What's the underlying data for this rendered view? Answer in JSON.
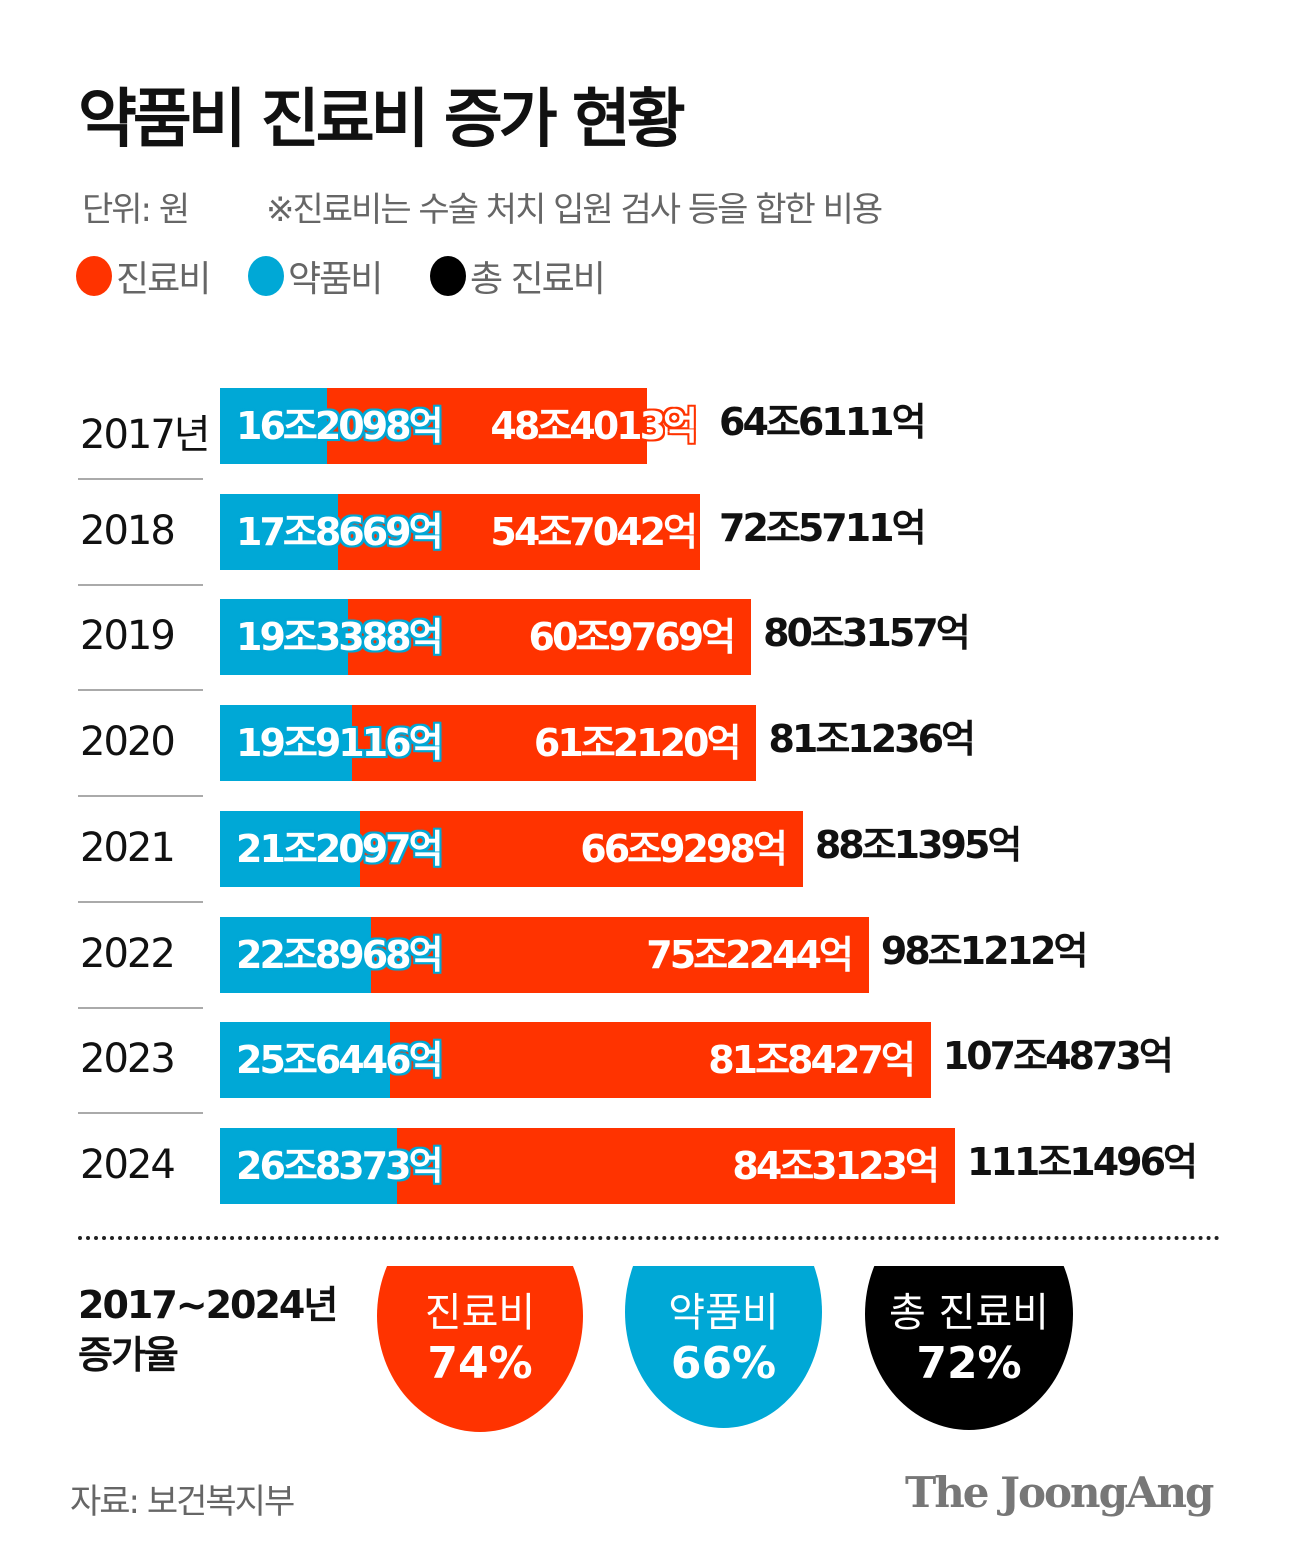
{
  "title": "약품비 진료비 증가 현황",
  "unit": "단위: 원",
  "note": "※진료비는 수술 처치 입원 검사 등을 합한 비용",
  "legend": [
    {
      "label": "진료비",
      "color": "#ff3300"
    },
    {
      "label": "약품비",
      "color": "#00a8d6"
    },
    {
      "label": "총 진료비",
      "color": "#000000"
    }
  ],
  "chart_data": {
    "type": "bar",
    "stacked": true,
    "orientation": "horizontal",
    "unit": "원",
    "categories": [
      "2017년",
      "2018",
      "2019",
      "2020",
      "2021",
      "2022",
      "2023",
      "2024"
    ],
    "series": [
      {
        "name": "약품비",
        "color": "#00a8d6",
        "values": [
          "16조2098억",
          "17조8669억",
          "19조3388억",
          "19조9116억",
          "21조2097억",
          "22조8968억",
          "25조6446억",
          "26조8373억"
        ]
      },
      {
        "name": "진료비",
        "color": "#ff3300",
        "values": [
          "48조4013억",
          "54조7042억",
          "60조9769억",
          "61조2120억",
          "66조9298억",
          "75조2244억",
          "81조8427억",
          "84조3123억"
        ]
      }
    ],
    "totals": {
      "name": "총 진료비",
      "values": [
        "64조6111억",
        "72조5711억",
        "80조3157억",
        "81조1236억",
        "88조1395억",
        "98조1212억",
        "107조4873억",
        "111조1496억"
      ]
    }
  },
  "growth": {
    "label_line1": "2017~2024년",
    "label_line2": "증가율",
    "items": [
      {
        "name": "진료비",
        "value": "74%",
        "color": "#ff3300"
      },
      {
        "name": "약품비",
        "value": "66%",
        "color": "#00a8d6"
      },
      {
        "name": "총 진료비",
        "value": "72%",
        "color": "#000000"
      }
    ]
  },
  "source": "자료: 보건복지부",
  "logo": "The JoongAng"
}
